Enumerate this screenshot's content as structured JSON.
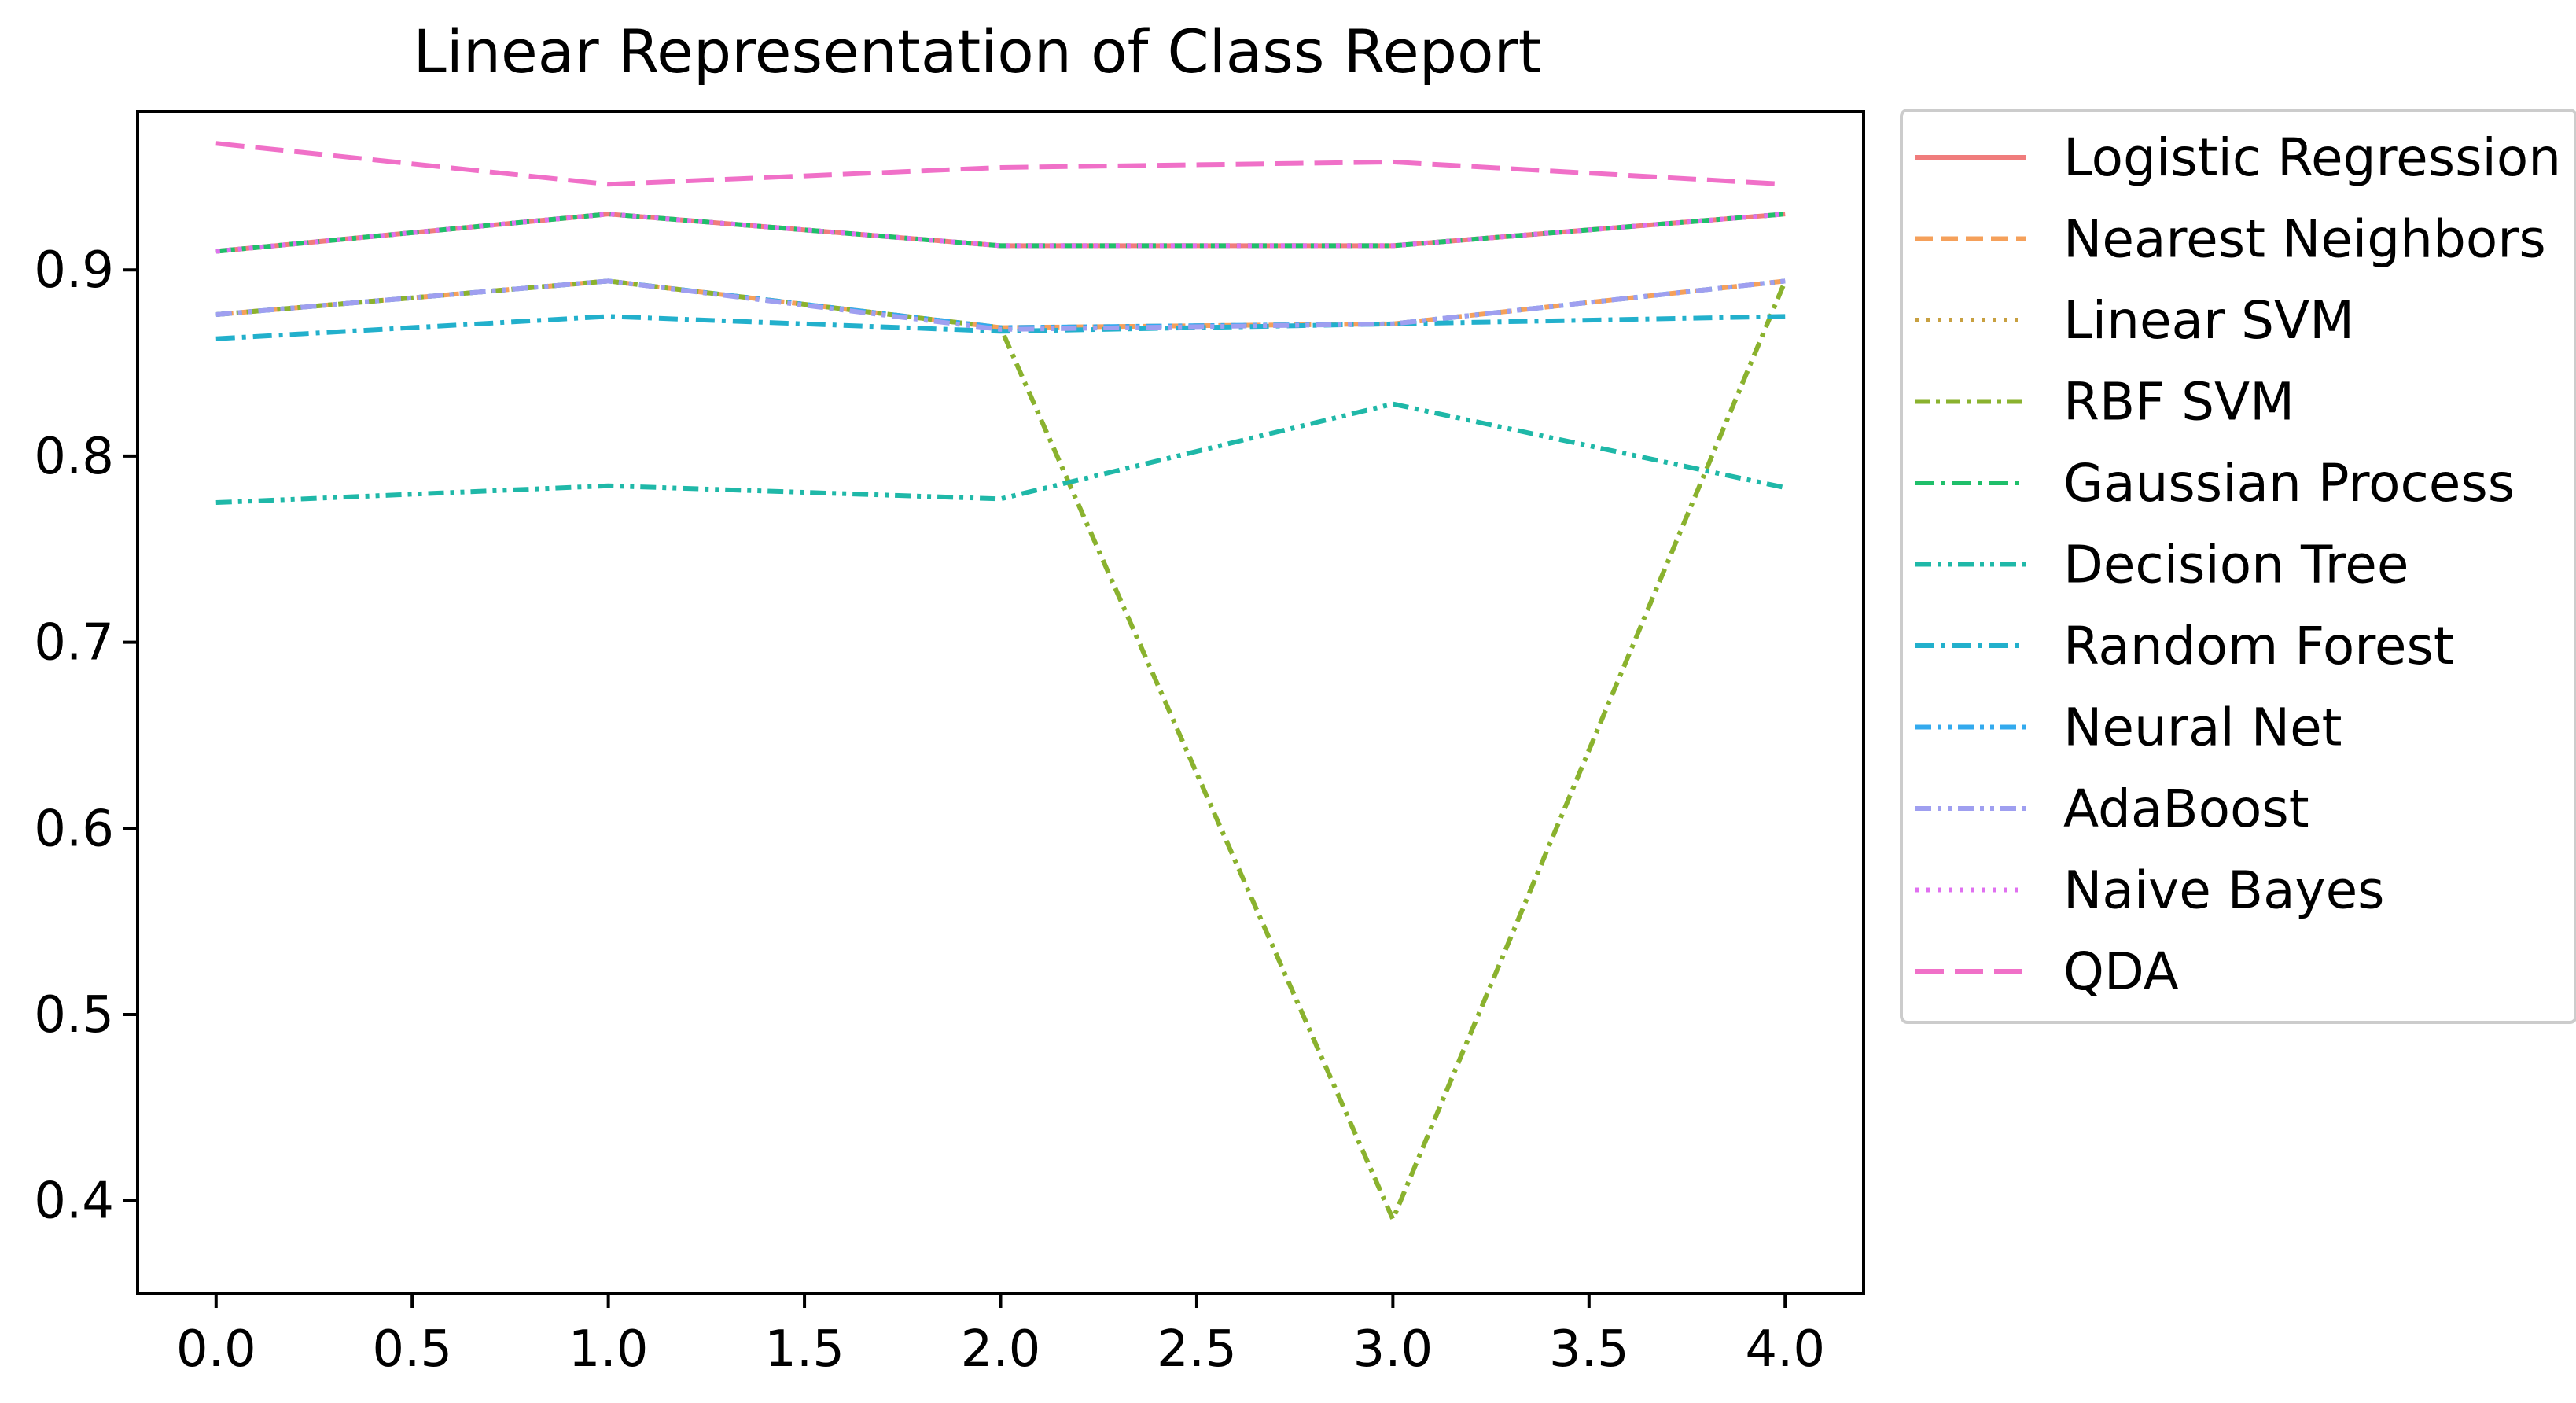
{
  "chart_data": {
    "type": "line",
    "title": "Linear Representation of Class Report",
    "xlabel": "",
    "ylabel": "",
    "x": [
      0,
      1,
      2,
      3,
      4
    ],
    "xlim": [
      -0.2,
      4.2
    ],
    "ylim": [
      0.35,
      0.985
    ],
    "xticks": [
      0.0,
      0.5,
      1.0,
      1.5,
      2.0,
      2.5,
      3.0,
      3.5,
      4.0
    ],
    "xtick_labels": [
      "0.0",
      "0.5",
      "1.0",
      "1.5",
      "2.0",
      "2.5",
      "3.0",
      "3.5",
      "4.0"
    ],
    "yticks": [
      0.4,
      0.5,
      0.6,
      0.7,
      0.8,
      0.9
    ],
    "ytick_labels": [
      "0.4",
      "0.5",
      "0.6",
      "0.7",
      "0.8",
      "0.9"
    ],
    "grid": false,
    "legend_position": "outside right, top",
    "series": [
      {
        "name": "Logistic Regression",
        "color": "#f07c7c",
        "dash": "solid",
        "values": [
          0.91,
          0.93,
          0.913,
          0.913,
          0.93
        ]
      },
      {
        "name": "Nearest Neighbors",
        "color": "#f5a05a",
        "dash": "dash",
        "values": [
          0.876,
          0.894,
          0.869,
          0.871,
          0.894
        ]
      },
      {
        "name": "Linear SVM",
        "color": "#c8a040",
        "dash": "dot",
        "values": [
          0.91,
          0.93,
          0.913,
          0.913,
          0.93
        ]
      },
      {
        "name": "RBF SVM",
        "color": "#8ab22e",
        "dash": "dashdot-long",
        "values": [
          0.876,
          0.894,
          0.869,
          0.39,
          0.894
        ]
      },
      {
        "name": "Gaussian Process",
        "color": "#1fbf6a",
        "dash": "dashdot",
        "values": [
          0.91,
          0.93,
          0.913,
          0.913,
          0.93
        ]
      },
      {
        "name": "Decision Tree",
        "color": "#1fb8a8",
        "dash": "dashdotdot",
        "values": [
          0.775,
          0.784,
          0.777,
          0.828,
          0.783
        ]
      },
      {
        "name": "Random Forest",
        "color": "#22b0cc",
        "dash": "dashdot",
        "values": [
          0.863,
          0.875,
          0.867,
          0.871,
          0.875
        ]
      },
      {
        "name": "Neural Net",
        "color": "#33aaee",
        "dash": "dashdotdot",
        "values": [
          0.876,
          0.894,
          0.869,
          0.871,
          0.894
        ]
      },
      {
        "name": "AdaBoost",
        "color": "#9f9ff0",
        "dash": "dashdotdot",
        "values": [
          0.876,
          0.894,
          0.868,
          0.871,
          0.894
        ]
      },
      {
        "name": "Naive Bayes",
        "color": "#e070f0",
        "dash": "dot",
        "values": [
          0.91,
          0.93,
          0.913,
          0.913,
          0.93
        ]
      },
      {
        "name": "QDA",
        "color": "#f070c8",
        "dash": "dash-long",
        "values": [
          0.968,
          0.946,
          0.955,
          0.958,
          0.946
        ]
      }
    ]
  }
}
